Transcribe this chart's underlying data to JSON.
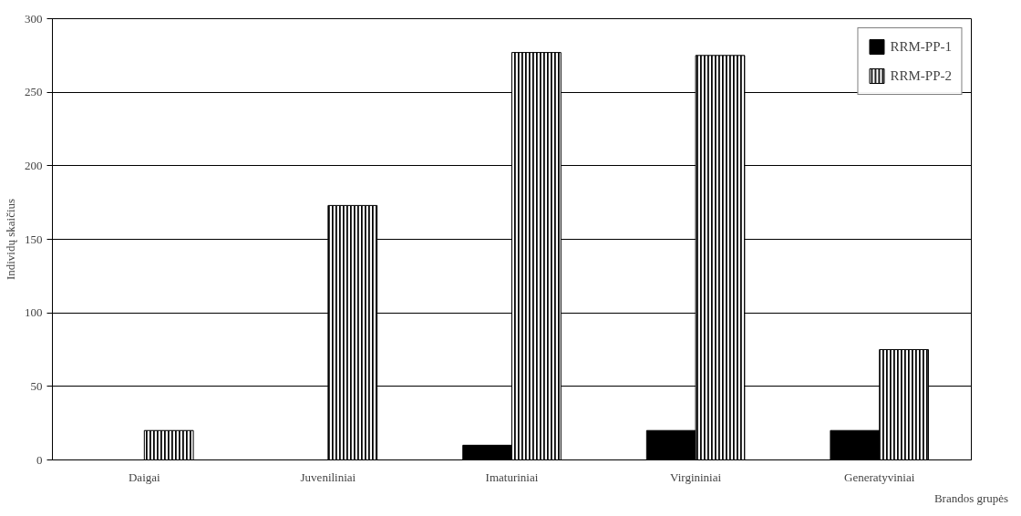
{
  "chart_data": {
    "type": "bar",
    "xlabel": "Brandos grupės",
    "ylabel": "Individų skaičius",
    "categories": [
      "Daigai",
      "Juveniliniai",
      "Imaturiniai",
      "Virgininiai",
      "Generatyviniai"
    ],
    "series": [
      {
        "name": "RRM-PP-1",
        "color": "#000000",
        "values": [
          0,
          0,
          10,
          20,
          20
        ]
      },
      {
        "name": "RRM-PP-2",
        "color": "#000000",
        "values": [
          20,
          173,
          277,
          275,
          75
        ]
      }
    ],
    "ylim": [
      0,
      300
    ],
    "yticks": [
      0,
      50,
      100,
      150,
      200,
      250,
      300
    ],
    "grid": "y",
    "legend": "top right"
  }
}
